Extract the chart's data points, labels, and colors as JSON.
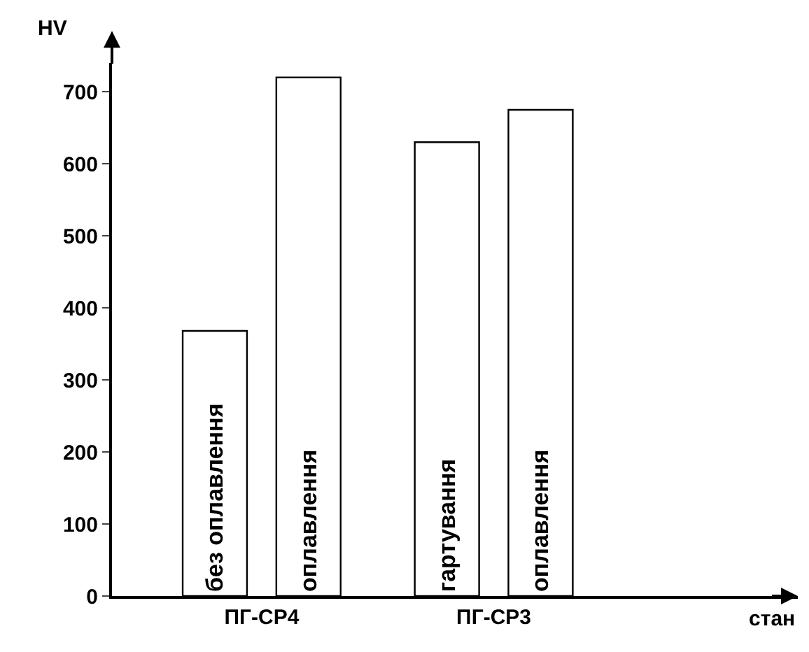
{
  "chart_data": {
    "type": "bar",
    "ylabel": "HV",
    "xlabel": "стан",
    "categories": [
      "ПГ-СР4",
      "ПГ-СР3"
    ],
    "series": [
      {
        "color": "#ffffff",
        "values": [
          368,
          630
        ],
        "value_labels": [
          "без оплавлення",
          "гартування"
        ]
      },
      {
        "color": "#ffffff",
        "values": [
          720,
          675
        ],
        "value_labels": [
          "оплавлення",
          "оплавлення"
        ]
      }
    ],
    "ylim": [
      0,
      740
    ],
    "yticks": [
      0,
      100,
      200,
      300,
      400,
      500,
      600,
      700
    ]
  }
}
